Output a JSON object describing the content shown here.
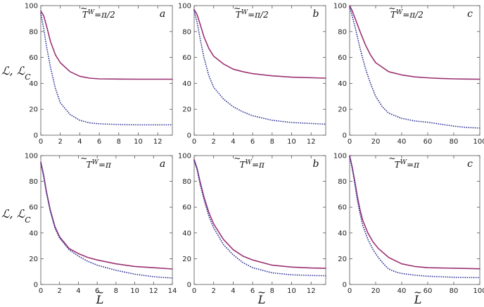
{
  "figure": {
    "ylabel": "ℒ, ℒ",
    "ylabel_sub": "C",
    "xlabel": "L",
    "tilde": "~"
  },
  "colors": {
    "solid": "#9b3272",
    "dotted": "#3b3f9c"
  },
  "chart_data": [
    {
      "type": "line",
      "panel_letter": "a",
      "annotation": "T",
      "annotation_sup": "W",
      "annotation_eq": "=π/2",
      "xlim": [
        0,
        13.5
      ],
      "ylim": [
        0,
        100
      ],
      "xticks": [
        0,
        2,
        4,
        6,
        8,
        10,
        12
      ],
      "yticks": [
        0,
        20,
        40,
        60,
        80,
        100
      ],
      "series": [
        {
          "style": "solid",
          "x": [
            0,
            0.3,
            0.6,
            1,
            1.5,
            2,
            3,
            4,
            5,
            6,
            8,
            10,
            13.5
          ],
          "y": [
            96,
            92,
            84,
            72,
            62,
            56,
            49,
            45.5,
            44,
            43.5,
            43.3,
            43.2,
            43.2
          ]
        },
        {
          "style": "dotted",
          "x": [
            0,
            0.3,
            0.6,
            1,
            1.5,
            2,
            3,
            4,
            5,
            6,
            8,
            10,
            13.5
          ],
          "y": [
            94,
            82,
            68,
            52,
            36,
            25,
            16,
            11.5,
            9.5,
            8.8,
            8.2,
            8,
            8
          ]
        }
      ]
    },
    {
      "type": "line",
      "panel_letter": "b",
      "annotation": "T",
      "annotation_sup": "W",
      "annotation_eq": "=π/2",
      "xlim": [
        0,
        13.5
      ],
      "ylim": [
        0,
        100
      ],
      "xticks": [
        0,
        2,
        4,
        6,
        8,
        10,
        12
      ],
      "yticks": [
        0,
        20,
        40,
        60,
        80,
        100
      ],
      "series": [
        {
          "style": "solid",
          "x": [
            0,
            0.3,
            0.6,
            1,
            1.5,
            2,
            3,
            4,
            5,
            6,
            8,
            10,
            13.5
          ],
          "y": [
            97,
            93,
            86,
            76,
            67,
            61,
            55,
            51,
            49,
            47.5,
            45.8,
            44.8,
            44
          ]
        },
        {
          "style": "dotted",
          "x": [
            0,
            0.3,
            0.6,
            1,
            1.5,
            2,
            3,
            4,
            5,
            6,
            8,
            10,
            13.5
          ],
          "y": [
            96,
            87,
            75,
            60,
            46,
            37,
            28,
            22,
            18,
            15,
            11.5,
            9.8,
            8.5
          ]
        }
      ]
    },
    {
      "type": "line",
      "panel_letter": "c",
      "annotation": "T",
      "annotation_sup": "W",
      "annotation_eq": "=π/2",
      "xlim": [
        0,
        100
      ],
      "ylim": [
        0,
        100
      ],
      "xticks": [
        0,
        20,
        40,
        60,
        80,
        100
      ],
      "yticks": [
        0,
        20,
        40,
        60,
        80,
        100
      ],
      "series": [
        {
          "style": "solid",
          "x": [
            0,
            2,
            5,
            8,
            12,
            16,
            20,
            30,
            40,
            50,
            60,
            70,
            80,
            90,
            100
          ],
          "y": [
            100,
            96,
            88,
            80,
            70,
            62,
            56,
            49,
            46.5,
            45,
            44.3,
            43.8,
            43.5,
            43.3,
            43.2
          ]
        },
        {
          "style": "dotted",
          "x": [
            0,
            2,
            5,
            8,
            12,
            16,
            20,
            25,
            30,
            40,
            50,
            55,
            60,
            70,
            80,
            90,
            100
          ],
          "y": [
            99,
            92,
            80,
            67,
            52,
            40,
            30,
            22,
            17,
            13,
            11,
            10.5,
            10,
            8.5,
            7,
            6,
            5.5
          ]
        }
      ]
    },
    {
      "type": "line",
      "panel_letter": "a",
      "annotation": "T",
      "annotation_sup": "W",
      "annotation_eq": "=π",
      "xlim": [
        0,
        14
      ],
      "ylim": [
        0,
        100
      ],
      "xticks": [
        0,
        2,
        4,
        6,
        8,
        10,
        12,
        14
      ],
      "yticks": [
        0,
        20,
        40,
        60,
        80,
        100
      ],
      "series": [
        {
          "style": "solid",
          "x": [
            0,
            0.3,
            0.6,
            1,
            1.5,
            2,
            3,
            4,
            5,
            6,
            8,
            10,
            12,
            14
          ],
          "y": [
            95,
            85,
            72,
            58,
            45,
            37,
            28,
            24,
            21,
            19,
            16,
            14,
            13,
            12
          ]
        },
        {
          "style": "dotted",
          "x": [
            0,
            0.3,
            0.6,
            1,
            1.5,
            2,
            3,
            4,
            5,
            6,
            8,
            10,
            12,
            14
          ],
          "y": [
            94,
            84,
            71,
            57,
            44,
            36,
            27,
            22,
            18,
            15,
            11,
            8,
            6,
            5
          ]
        }
      ]
    },
    {
      "type": "line",
      "panel_letter": "b",
      "annotation": "T",
      "annotation_sup": "W",
      "annotation_eq": "=π",
      "xlim": [
        0,
        13.5
      ],
      "ylim": [
        0,
        100
      ],
      "xticks": [
        0,
        2,
        4,
        6,
        8,
        10,
        12
      ],
      "yticks": [
        0,
        20,
        40,
        60,
        80,
        100
      ],
      "series": [
        {
          "style": "solid",
          "x": [
            0,
            0.3,
            0.6,
            1,
            1.5,
            2,
            3,
            4,
            5,
            6,
            8,
            10,
            12,
            13.5
          ],
          "y": [
            97,
            90,
            80,
            68,
            56,
            47,
            35,
            27,
            22,
            19,
            15,
            13.5,
            12.8,
            12.5
          ]
        },
        {
          "style": "dotted",
          "x": [
            0,
            0.3,
            0.6,
            1,
            1.5,
            2,
            3,
            4,
            5,
            6,
            8,
            10,
            12,
            13.5
          ],
          "y": [
            96,
            89,
            78,
            66,
            53,
            44,
            31,
            23,
            17,
            13,
            9,
            7.5,
            7,
            6.8
          ]
        }
      ]
    },
    {
      "type": "line",
      "panel_letter": "c",
      "annotation": "T",
      "annotation_sup": "W",
      "annotation_eq": "=π",
      "xlim": [
        0,
        100
      ],
      "ylim": [
        0,
        100
      ],
      "xticks": [
        0,
        20,
        40,
        60,
        80,
        100
      ],
      "yticks": [
        0,
        20,
        40,
        60,
        80,
        100
      ],
      "series": [
        {
          "style": "solid",
          "x": [
            0,
            2,
            4,
            6,
            8,
            10,
            14,
            18,
            22,
            30,
            40,
            50,
            60,
            70,
            80,
            90,
            100
          ],
          "y": [
            100,
            91,
            80,
            68,
            58,
            50,
            40,
            33,
            28,
            21,
            16,
            14,
            13,
            12.8,
            12.6,
            12.4,
            12.2
          ]
        },
        {
          "style": "dotted",
          "x": [
            0,
            2,
            4,
            6,
            8,
            10,
            14,
            18,
            22,
            26,
            30,
            36,
            40,
            50,
            60,
            70,
            80,
            90,
            100
          ],
          "y": [
            99,
            90,
            78,
            65,
            55,
            46,
            35,
            27,
            21,
            16,
            12,
            9.5,
            8.5,
            7.2,
            6.4,
            6,
            5.6,
            5.4,
            5.3
          ]
        }
      ]
    }
  ]
}
